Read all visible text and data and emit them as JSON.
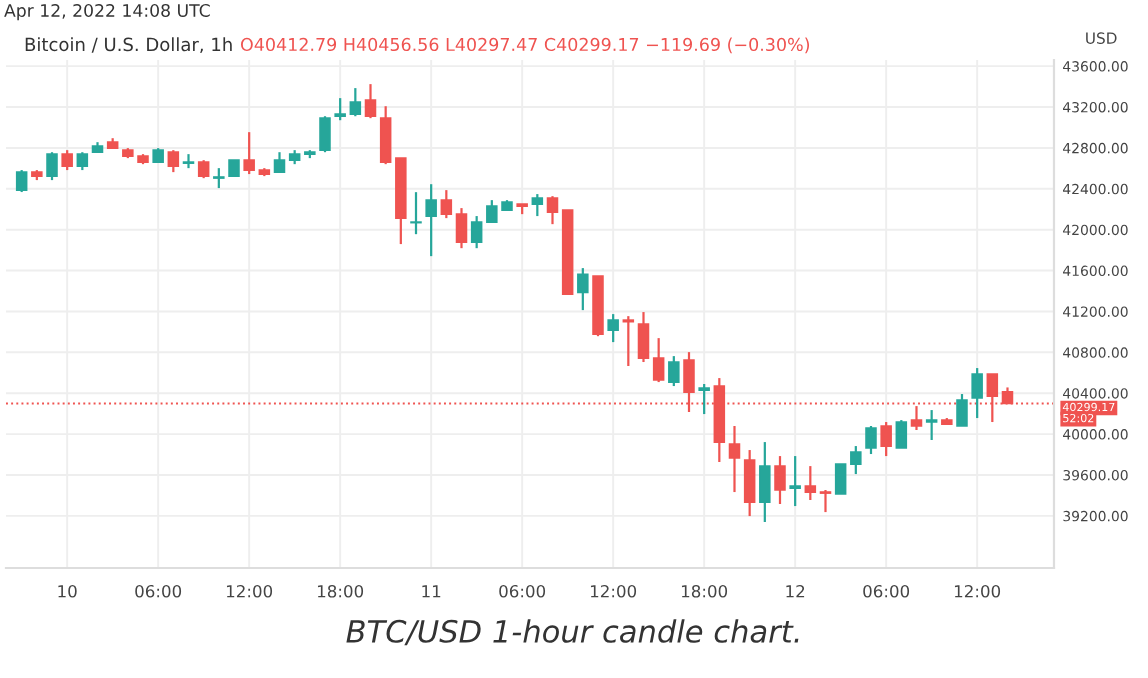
{
  "chart_data": {
    "type": "candlestick",
    "title": "Bitcoin / U.S. Dollar, 1h",
    "ylabel": "USD",
    "annotations": [
      "Apr 12, 2022 14:08 UTC",
      "O40412.79 H40456.56 L40297.47 C40299.17 −119.69 (−0.30%)",
      "52:02",
      "BTC/USD 1-hour candle chart."
    ],
    "x": [
      "2022-04-09T21:00",
      "2022-04-09T22:00",
      "2022-04-09T23:00",
      "2022-04-10T00:00",
      "2022-04-10T01:00",
      "2022-04-10T02:00",
      "2022-04-10T03:00",
      "2022-04-10T04:00",
      "2022-04-10T05:00",
      "2022-04-10T06:00",
      "2022-04-10T07:00",
      "2022-04-10T08:00",
      "2022-04-10T09:00",
      "2022-04-10T10:00",
      "2022-04-10T11:00",
      "2022-04-10T12:00",
      "2022-04-10T13:00",
      "2022-04-10T14:00",
      "2022-04-10T15:00",
      "2022-04-10T16:00",
      "2022-04-10T17:00",
      "2022-04-10T18:00",
      "2022-04-10T19:00",
      "2022-04-10T20:00",
      "2022-04-10T21:00",
      "2022-04-10T22:00",
      "2022-04-10T23:00",
      "2022-04-11T00:00",
      "2022-04-11T01:00",
      "2022-04-11T02:00",
      "2022-04-11T03:00",
      "2022-04-11T04:00",
      "2022-04-11T05:00",
      "2022-04-11T06:00",
      "2022-04-11T07:00",
      "2022-04-11T08:00",
      "2022-04-11T09:00",
      "2022-04-11T10:00",
      "2022-04-11T11:00",
      "2022-04-11T12:00",
      "2022-04-11T13:00",
      "2022-04-11T14:00",
      "2022-04-11T15:00",
      "2022-04-11T16:00",
      "2022-04-11T17:00",
      "2022-04-11T18:00",
      "2022-04-11T19:00",
      "2022-04-11T20:00",
      "2022-04-11T21:00",
      "2022-04-11T22:00",
      "2022-04-11T23:00",
      "2022-04-12T00:00",
      "2022-04-12T01:00",
      "2022-04-12T02:00",
      "2022-04-12T03:00",
      "2022-04-12T04:00",
      "2022-04-12T05:00",
      "2022-04-12T06:00",
      "2022-04-12T07:00",
      "2022-04-12T08:00",
      "2022-04-12T09:00",
      "2022-04-12T10:00",
      "2022-04-12T11:00",
      "2022-04-12T12:00",
      "2022-04-12T13:00",
      "2022-04-12T14:00"
    ],
    "ohlc": [
      [
        42387,
        42583,
        42368,
        42563
      ],
      [
        42563,
        42583,
        42485,
        42524
      ],
      [
        42524,
        42758,
        42485,
        42739
      ],
      [
        42739,
        42778,
        42583,
        42622
      ],
      [
        42622,
        42758,
        42583,
        42739
      ],
      [
        42758,
        42856,
        42758,
        42817
      ],
      [
        42856,
        42895,
        42798,
        42798
      ],
      [
        42778,
        42798,
        42700,
        42719
      ],
      [
        42719,
        42739,
        42641,
        42661
      ],
      [
        42661,
        42798,
        42661,
        42778
      ],
      [
        42758,
        42778,
        42563,
        42622
      ],
      [
        42651,
        42739,
        42602,
        42661
      ],
      [
        42661,
        42680,
        42504,
        42524
      ],
      [
        42505,
        42602,
        42407,
        42515
      ],
      [
        42524,
        42680,
        42524,
        42680
      ],
      [
        42680,
        42954,
        42544,
        42583
      ],
      [
        42583,
        42602,
        42524,
        42544
      ],
      [
        42563,
        42758,
        42563,
        42680
      ],
      [
        42680,
        42778,
        42641,
        42739
      ],
      [
        42739,
        42778,
        42700,
        42758
      ],
      [
        42778,
        43110,
        42758,
        43091
      ],
      [
        43110,
        43287,
        43071,
        43130
      ],
      [
        43130,
        43385,
        43110,
        43248
      ],
      [
        43267,
        43424,
        43091,
        43110
      ],
      [
        43091,
        43208,
        42641,
        42661
      ],
      [
        42700,
        42700,
        41859,
        42113
      ],
      [
        42069,
        42367,
        41956,
        42074
      ],
      [
        42133,
        42445,
        41741,
        42289
      ],
      [
        42289,
        42387,
        42113,
        42152
      ],
      [
        42152,
        42211,
        41819,
        41878
      ],
      [
        41878,
        42133,
        41819,
        42074
      ],
      [
        42074,
        42289,
        42074,
        42230
      ],
      [
        42191,
        42289,
        42191,
        42269
      ],
      [
        42250,
        42250,
        42152,
        42230
      ],
      [
        42250,
        42348,
        42133,
        42308
      ],
      [
        42308,
        42328,
        42054,
        42172
      ],
      [
        42191,
        42191,
        41370,
        41370
      ],
      [
        41385,
        41624,
        41213,
        41562
      ],
      [
        41546,
        41546,
        40958,
        40978
      ],
      [
        41018,
        41174,
        40900,
        41115
      ],
      [
        41115,
        41154,
        40666,
        41100
      ],
      [
        41076,
        41194,
        40705,
        40744
      ],
      [
        40744,
        40939,
        40509,
        40529
      ],
      [
        40509,
        40763,
        40470,
        40705
      ],
      [
        40724,
        40802,
        40216,
        40411
      ],
      [
        40431,
        40490,
        40196,
        40450
      ],
      [
        40470,
        40548,
        39727,
        39922
      ],
      [
        39903,
        40079,
        39433,
        39766
      ],
      [
        39746,
        39844,
        39198,
        39335
      ],
      [
        39335,
        39922,
        39140,
        39687
      ],
      [
        39687,
        39785,
        39316,
        39453
      ],
      [
        39472,
        39785,
        39296,
        39492
      ],
      [
        39492,
        39687,
        39355,
        39433
      ],
      [
        39433,
        39453,
        39237,
        39423
      ],
      [
        39414,
        39707,
        39414,
        39707
      ],
      [
        39707,
        39883,
        39609,
        39824
      ],
      [
        39864,
        40079,
        39805,
        40059
      ],
      [
        40079,
        40118,
        39785,
        39883
      ],
      [
        39864,
        40137,
        39864,
        40118
      ],
      [
        40137,
        40274,
        40040,
        40079
      ],
      [
        40118,
        40235,
        39942,
        40137
      ],
      [
        40137,
        40157,
        40098,
        40098
      ],
      [
        40079,
        40392,
        40079,
        40333
      ],
      [
        40353,
        40646,
        40157,
        40587
      ],
      [
        40587,
        40587,
        40118,
        40372
      ],
      [
        40412.79,
        40456.56,
        40297.47,
        40299.17
      ]
    ],
    "colors": [
      "#26a69a",
      "#ef5350",
      "#26a69a",
      "#ef5350",
      "#26a69a",
      "#26a69a",
      "#ef5350",
      "#ef5350",
      "#ef5350",
      "#26a69a",
      "#ef5350",
      "#26a69a",
      "#ef5350",
      "#26a69a",
      "#26a69a",
      "#ef5350",
      "#ef5350",
      "#26a69a",
      "#26a69a",
      "#26a69a",
      "#26a69a",
      "#26a69a",
      "#26a69a",
      "#ef5350",
      "#ef5350",
      "#ef5350",
      "#26a69a",
      "#26a69a",
      "#ef5350",
      "#ef5350",
      "#26a69a",
      "#26a69a",
      "#26a69a",
      "#ef5350",
      "#26a69a",
      "#ef5350",
      "#ef5350",
      "#26a69a",
      "#ef5350",
      "#26a69a",
      "#ef5350",
      "#ef5350",
      "#ef5350",
      "#26a69a",
      "#ef5350",
      "#26a69a",
      "#ef5350",
      "#ef5350",
      "#ef5350",
      "#26a69a",
      "#ef5350",
      "#26a69a",
      "#ef5350",
      "#ef5350",
      "#26a69a",
      "#26a69a",
      "#26a69a",
      "#ef5350",
      "#26a69a",
      "#ef5350",
      "#26a69a",
      "#ef5350",
      "#26a69a",
      "#26a69a",
      "#ef5350",
      "#ef5350"
    ],
    "xlim": [
      "2022-04-09T19:58",
      "2022-04-12T17:04"
    ],
    "xticks": [
      {
        "value": "2022-04-10T00:00",
        "label": "10"
      },
      {
        "value": "2022-04-10T06:00",
        "label": "06:00"
      },
      {
        "value": "2022-04-10T12:00",
        "label": "12:00"
      },
      {
        "value": "2022-04-10T18:00",
        "label": "18:00"
      },
      {
        "value": "2022-04-11T00:00",
        "label": "11"
      },
      {
        "value": "2022-04-11T06:00",
        "label": "06:00"
      },
      {
        "value": "2022-04-11T12:00",
        "label": "12:00"
      },
      {
        "value": "2022-04-11T18:00",
        "label": "18:00"
      },
      {
        "value": "2022-04-12T00:00",
        "label": "12"
      },
      {
        "value": "2022-04-12T06:00",
        "label": "06:00"
      },
      {
        "value": "2022-04-12T12:00",
        "label": "12:00"
      }
    ],
    "ylim": [
      38690,
      43660
    ],
    "yticks": [
      {
        "value": 39200,
        "label": "39200.00"
      },
      {
        "value": 39600,
        "label": "39600.00"
      },
      {
        "value": 40000,
        "label": "40000.00"
      },
      {
        "value": 40400,
        "label": "40400.00"
      },
      {
        "value": 40800,
        "label": "40800.00"
      },
      {
        "value": 41200,
        "label": "41200.00"
      },
      {
        "value": 41600,
        "label": "41600.00"
      },
      {
        "value": 42000,
        "label": "42000.00"
      },
      {
        "value": 42400,
        "label": "42400.00"
      },
      {
        "value": 42800,
        "label": "42800.00"
      },
      {
        "value": 43200,
        "label": "43200.00"
      },
      {
        "value": 43600,
        "label": "43600.00"
      }
    ],
    "ref_lines": [
      {
        "axis": "y",
        "value": 40299.17,
        "label": "40299.17",
        "color": "#ef5350",
        "line_style": "dotted"
      }
    ],
    "grid": true
  }
}
